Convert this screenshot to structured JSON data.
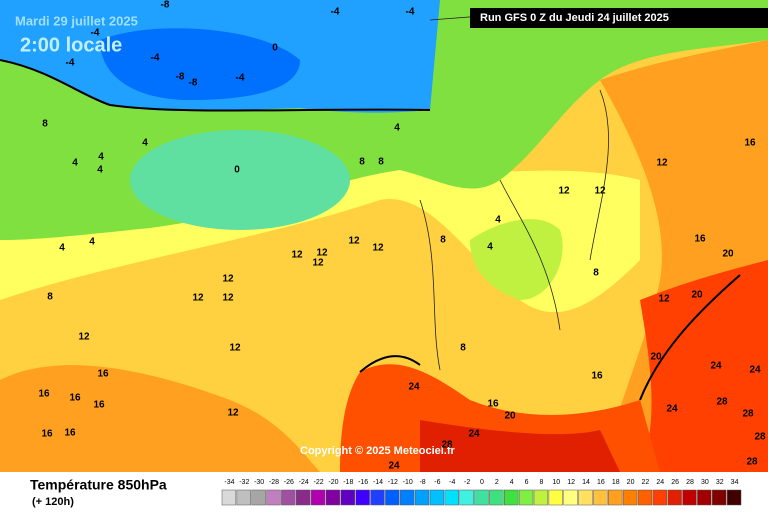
{
  "header": {
    "date": "Mardi 29 juillet 2025",
    "time": "2:00 locale",
    "run": "Run GFS 0 Z du Jeudi 24 juillet 2025"
  },
  "copyright": "Copyright © 2025 Meteociel.fr",
  "footer": {
    "title": "Température 850hPa",
    "subtitle": "(+ 120h)"
  },
  "scale": {
    "values": [
      -34,
      -32,
      -30,
      -28,
      -26,
      -24,
      -22,
      -20,
      -18,
      -16,
      -14,
      -12,
      -10,
      -8,
      -6,
      -4,
      -2,
      0,
      2,
      4,
      6,
      8,
      10,
      12,
      14,
      16,
      18,
      20,
      22,
      24,
      26,
      28,
      30,
      32,
      34
    ],
    "colors": [
      "#d9d9d9",
      "#bfbfbf",
      "#a6a6a6",
      "#c080c0",
      "#a050a0",
      "#8a2a8a",
      "#b000b0",
      "#8000a0",
      "#6000c0",
      "#4000ff",
      "#2040ff",
      "#0060ff",
      "#0080ff",
      "#00a0ff",
      "#00c0ff",
      "#00e0ff",
      "#40f0e0",
      "#40e0a0",
      "#40e080",
      "#40e040",
      "#80f040",
      "#c0f040",
      "#ffff40",
      "#ffff80",
      "#ffe060",
      "#ffc040",
      "#ffa020",
      "#ff8000",
      "#ff6000",
      "#ff4000",
      "#e02000",
      "#c00000",
      "#a00000",
      "#800000",
      "#400000"
    ]
  },
  "map_labels": [
    -4,
    -4,
    -4,
    -4,
    -4,
    -4,
    -8,
    -8,
    -8,
    0,
    8,
    8,
    8,
    8,
    8,
    8,
    8,
    4,
    4,
    4,
    4,
    4,
    4,
    4,
    4,
    4,
    0,
    12,
    12,
    12,
    12,
    12,
    12,
    12,
    12,
    12,
    12,
    12,
    12,
    12,
    12,
    12,
    16,
    16,
    16,
    16,
    16,
    16,
    16,
    16,
    16,
    16,
    20,
    20,
    20,
    20,
    24,
    24,
    24,
    24,
    24,
    24,
    28,
    28,
    28,
    28,
    28
  ]
}
